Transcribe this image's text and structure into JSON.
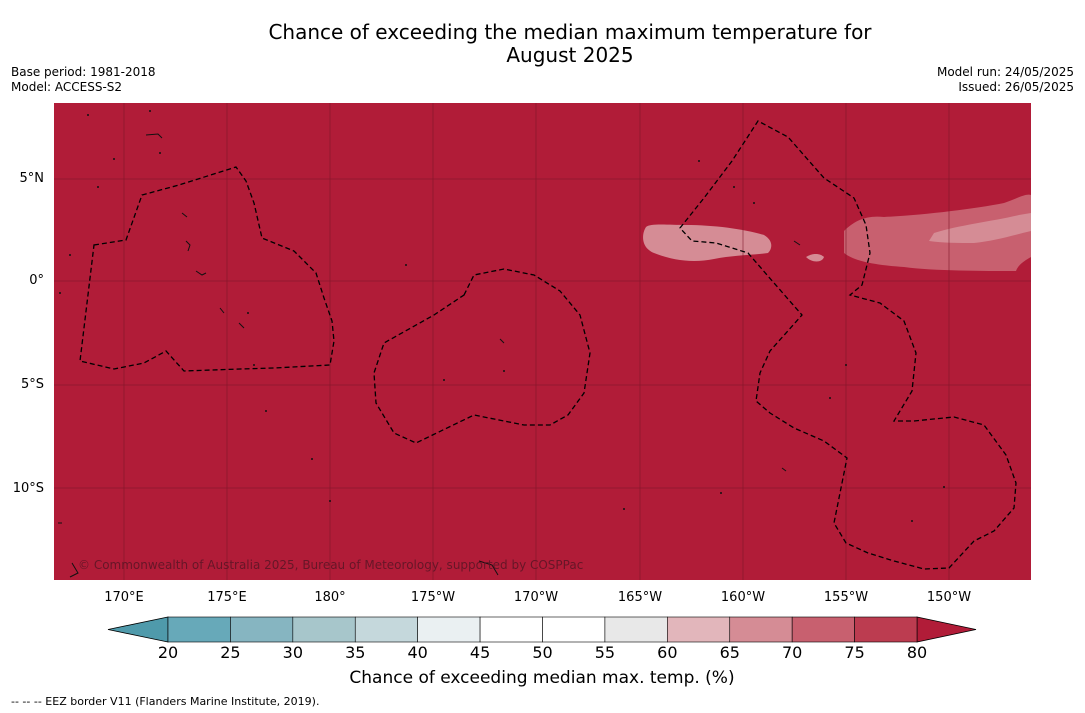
{
  "title_line1": "Chance of exceeding the median maximum temperature for",
  "title_line2": "August 2025",
  "base_period": "Base period: 1981-2018",
  "model": "Model: ACCESS-S2",
  "model_run": "Model run: 24/05/2025",
  "issued": "Issued: 26/05/2025",
  "copyright": "© Commonwealth of Australia 2025, Bureau of Meteorology, supported by COSPPac",
  "footer": "--  --  -- EEZ border V11 (Flanders Marine Institute, 2019).",
  "lat_labels": [
    "5°N",
    "0°",
    "5°S",
    "10°S"
  ],
  "lon_labels": [
    "170°E",
    "175°E",
    "180°",
    "175°W",
    "170°W",
    "165°W",
    "160°W",
    "155°W",
    "150°W"
  ],
  "colorbar": {
    "label": "Chance of exceeding median max. temp. (%)",
    "ticks": [
      "20",
      "25",
      "30",
      "35",
      "40",
      "45",
      "50",
      "55",
      "60",
      "65",
      "70",
      "75",
      "80"
    ],
    "colors": [
      "#67a9b9",
      "#86b5c1",
      "#a7c6cb",
      "#c5d8dc",
      "#eaf0f2",
      "#ffffff",
      "#ffffff",
      "#e8e8e8",
      "#e2b6bb",
      "#d58c95",
      "#c8606f",
      "#bc3c50"
    ],
    "low_color": "#4f9aab",
    "high_color": "#b11c38"
  },
  "map_colors": {
    "background": "#b11c38",
    "band_70_75": "#c8606f",
    "band_65_70": "#d58c95"
  }
}
